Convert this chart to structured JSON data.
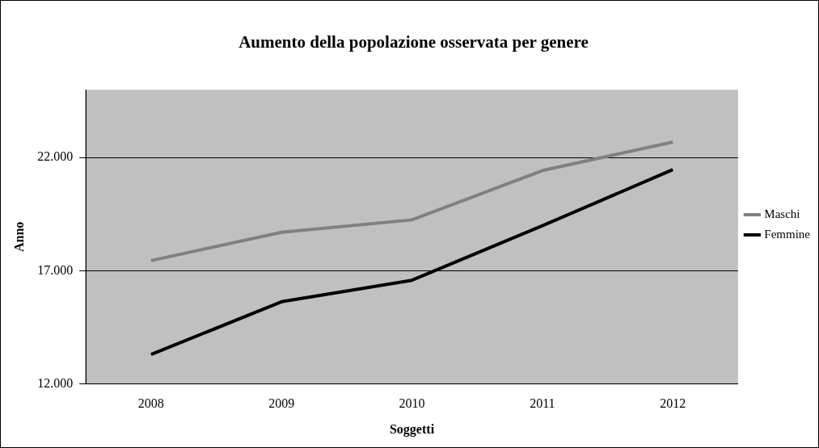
{
  "chart_data": {
    "type": "line",
    "title": "Aumento della popolazione osservata per genere",
    "xlabel": "Soggetti",
    "ylabel": "Anno",
    "categories": [
      "2008",
      "2009",
      "2010",
      "2011",
      "2012"
    ],
    "series": [
      {
        "name": "Maschi",
        "color": "#808080",
        "values": [
          17450,
          18700,
          19250,
          21430,
          22690
        ]
      },
      {
        "name": "Femmine",
        "color": "#000000",
        "values": [
          13300,
          15630,
          16580,
          18990,
          21470
        ]
      }
    ],
    "ylim": [
      12000,
      25000
    ],
    "yticks": [
      {
        "value": 12000,
        "label": "12.000"
      },
      {
        "value": 17000,
        "label": "17.000"
      },
      {
        "value": 22000,
        "label": "22.000"
      }
    ],
    "grid": "y",
    "legend": "right",
    "marker": "none",
    "line_style": "solid"
  }
}
